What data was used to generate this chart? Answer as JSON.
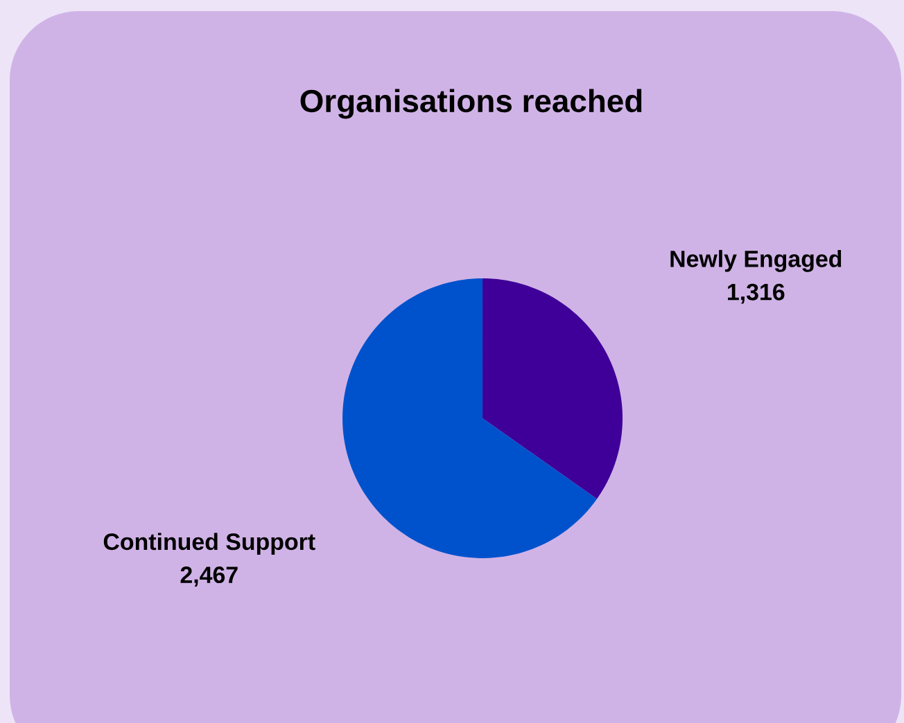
{
  "chart_data": {
    "type": "pie",
    "title": "Organisations reached",
    "categories": [
      "Newly Engaged",
      "Continued Support"
    ],
    "values": [
      1316,
      2467
    ],
    "colors": [
      "#3f0099",
      "#0052cc"
    ],
    "value_labels": [
      "1,316",
      "2,467"
    ]
  }
}
